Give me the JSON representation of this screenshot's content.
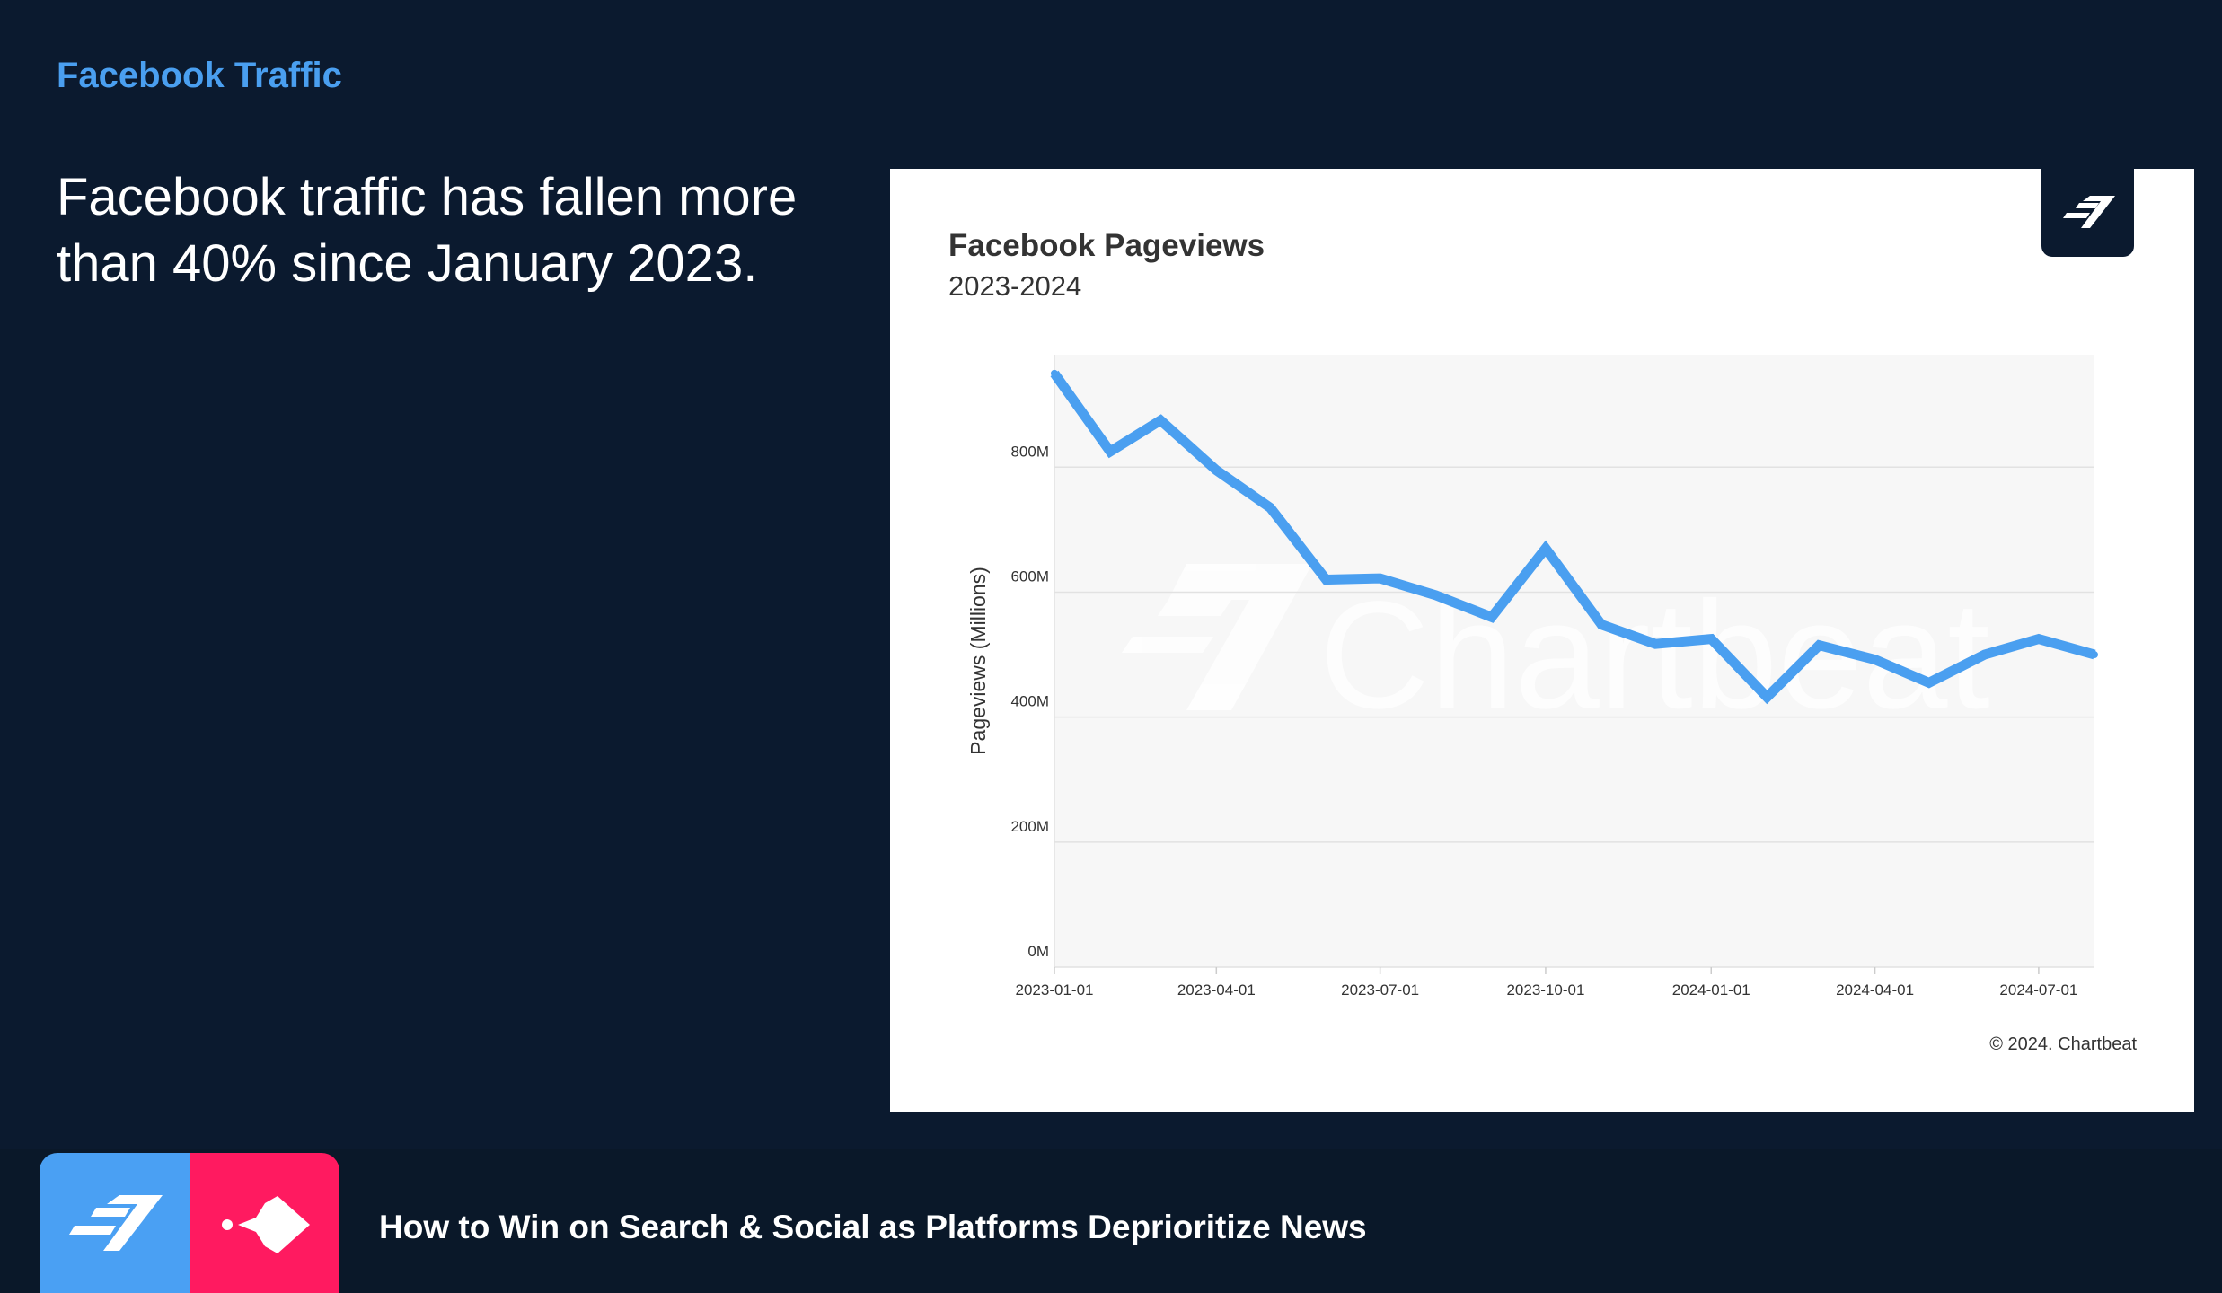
{
  "slide": {
    "section_title": "Facebook Traffic",
    "headline": "Facebook traffic has fallen more than 40% since January 2023.",
    "footer_title": "How to Win on Search & Social as Platforms Deprioritize News"
  },
  "colors": {
    "background": "#0b1a2f",
    "accent": "#4a9ff0",
    "line": "#4a9ff0",
    "pink": "#ff1a60"
  },
  "chart_data": {
    "type": "line",
    "title": "Facebook Pageviews",
    "subtitle": "2023-2024",
    "ylabel": "Pageviews (Millions)",
    "xlabel": "",
    "watermark": "Chartbeat",
    "credit": "© 2024. Chartbeat",
    "ylim": [
      0,
      980
    ],
    "yticks": [
      0,
      200,
      400,
      600,
      800
    ],
    "ytick_labels": [
      "0M",
      "200M",
      "400M",
      "600M",
      "800M"
    ],
    "xticks": [
      "2023-01-01",
      "2023-04-01",
      "2023-07-01",
      "2023-10-01",
      "2024-01-01",
      "2024-04-01",
      "2024-07-01"
    ],
    "x": [
      "2023-01-01",
      "2023-02-01",
      "2023-03-01",
      "2023-04-01",
      "2023-05-01",
      "2023-06-01",
      "2023-07-01",
      "2023-08-01",
      "2023-09-01",
      "2023-10-01",
      "2023-11-01",
      "2023-12-01",
      "2024-01-01",
      "2024-02-01",
      "2024-03-01",
      "2024-04-01",
      "2024-05-01",
      "2024-06-01",
      "2024-07-01",
      "2024-08-01"
    ],
    "series": [
      {
        "name": "Facebook Pageviews",
        "values": [
          950,
          825,
          875,
          795,
          735,
          620,
          622,
          595,
          560,
          670,
          548,
          517,
          525,
          432,
          515,
          492,
          455,
          500,
          525,
          500
        ]
      }
    ]
  }
}
